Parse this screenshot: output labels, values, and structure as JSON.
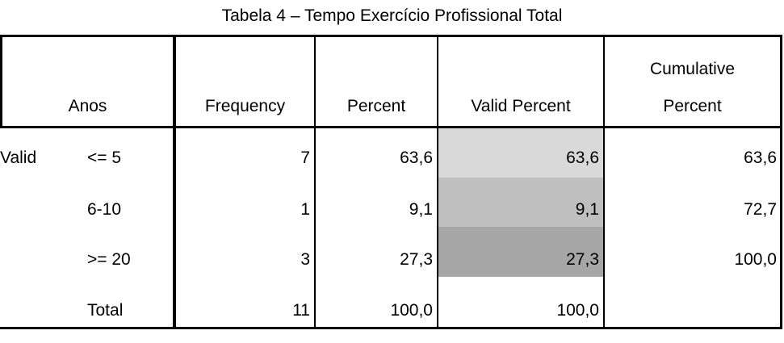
{
  "title": "Tabela 4 – Tempo Exercício Profissional Total",
  "table": {
    "header": [
      "Anos",
      "Frequency",
      "Percent",
      "Valid Percent",
      [
        "Cumulative",
        "Percent"
      ]
    ],
    "row_group": "Valid",
    "rows": [
      [
        "<= 5",
        "7",
        "63,6",
        "63,6",
        "63,6"
      ],
      [
        "6-10",
        "1",
        "9,1",
        "9,1",
        "72,7"
      ],
      [
        ">= 20",
        "3",
        "27,3",
        "27,3",
        "100,0"
      ],
      [
        "Total",
        "11",
        "100,0",
        "100,0"
      ]
    ]
  }
}
